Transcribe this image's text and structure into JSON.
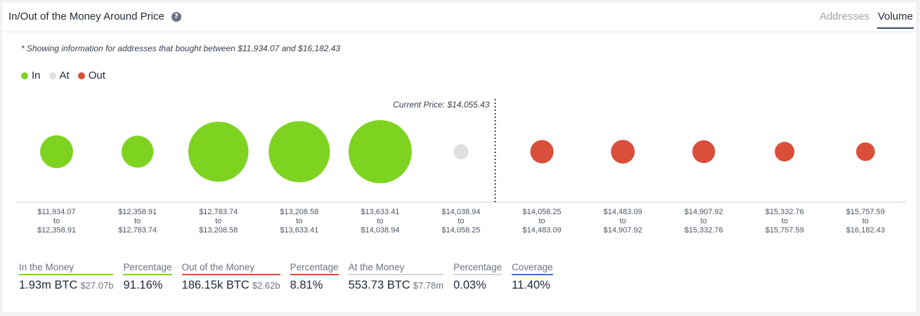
{
  "header": {
    "title": "In/Out of the Money Around Price",
    "tabs": [
      {
        "label": "Addresses",
        "active": false
      },
      {
        "label": "Volume",
        "active": true
      }
    ]
  },
  "note": "* Showing information for addresses that bought between $11,934.07 and $16,182.43",
  "legend": [
    {
      "label": "In",
      "color": "#7ed321"
    },
    {
      "label": "At",
      "color": "#e0e0e0"
    },
    {
      "label": "Out",
      "color": "#d94f3a"
    }
  ],
  "chart_data": {
    "type": "bubble",
    "current_price_label": "Current Price: $14,055.43",
    "current_price_after_index": 5,
    "colors": {
      "in": "#7ed321",
      "at": "#e0e0e0",
      "out": "#d94f3a"
    },
    "bins": [
      {
        "from": "$11,934.07",
        "to": "$12,358.91",
        "status": "in",
        "relative_volume": 0.4
      },
      {
        "from": "$12,358.91",
        "to": "$12,783.74",
        "status": "in",
        "relative_volume": 0.38
      },
      {
        "from": "$12,783.74",
        "to": "$13,208.58",
        "status": "in",
        "relative_volume": 0.94
      },
      {
        "from": "$13,208.58",
        "to": "$13,633.41",
        "status": "in",
        "relative_volume": 0.96
      },
      {
        "from": "$13,633.41",
        "to": "$14,038.94",
        "status": "in",
        "relative_volume": 1.0
      },
      {
        "from": "$14,038.94",
        "to": "$14,058.25",
        "status": "at",
        "relative_volume": 0.05
      },
      {
        "from": "$14,058.25",
        "to": "$14,483.09",
        "status": "out",
        "relative_volume": 0.21
      },
      {
        "from": "$14,483.09",
        "to": "$14,907.92",
        "status": "out",
        "relative_volume": 0.22
      },
      {
        "from": "$14,907.92",
        "to": "$15,332.76",
        "status": "out",
        "relative_volume": 0.2
      },
      {
        "from": "$15,332.76",
        "to": "$15,757.59",
        "status": "out",
        "relative_volume": 0.14
      },
      {
        "from": "$15,757.59",
        "to": "$16,182.43",
        "status": "out",
        "relative_volume": 0.12
      }
    ],
    "to_word": "to"
  },
  "stats": [
    {
      "label": "In the Money",
      "value": "1.93m BTC",
      "sub": "$27.07b",
      "color": "#7ed321"
    },
    {
      "label": "Percentage",
      "value": "91.16%",
      "sub": "",
      "color": "#7ed321"
    },
    {
      "label": "Out of the Money",
      "value": "186.15k BTC",
      "sub": "$2.62b",
      "color": "#d94f3a"
    },
    {
      "label": "Percentage",
      "value": "8.81%",
      "sub": "",
      "color": "#d94f3a"
    },
    {
      "label": "At the Money",
      "value": "553.73 BTC",
      "sub": "$7.78m",
      "color": "#d1d5db"
    },
    {
      "label": "Percentage",
      "value": "0.03%",
      "sub": "",
      "color": "#d1d5db"
    },
    {
      "label": "Coverage",
      "value": "11.40%",
      "sub": "",
      "color": "#3b6fd8"
    }
  ]
}
